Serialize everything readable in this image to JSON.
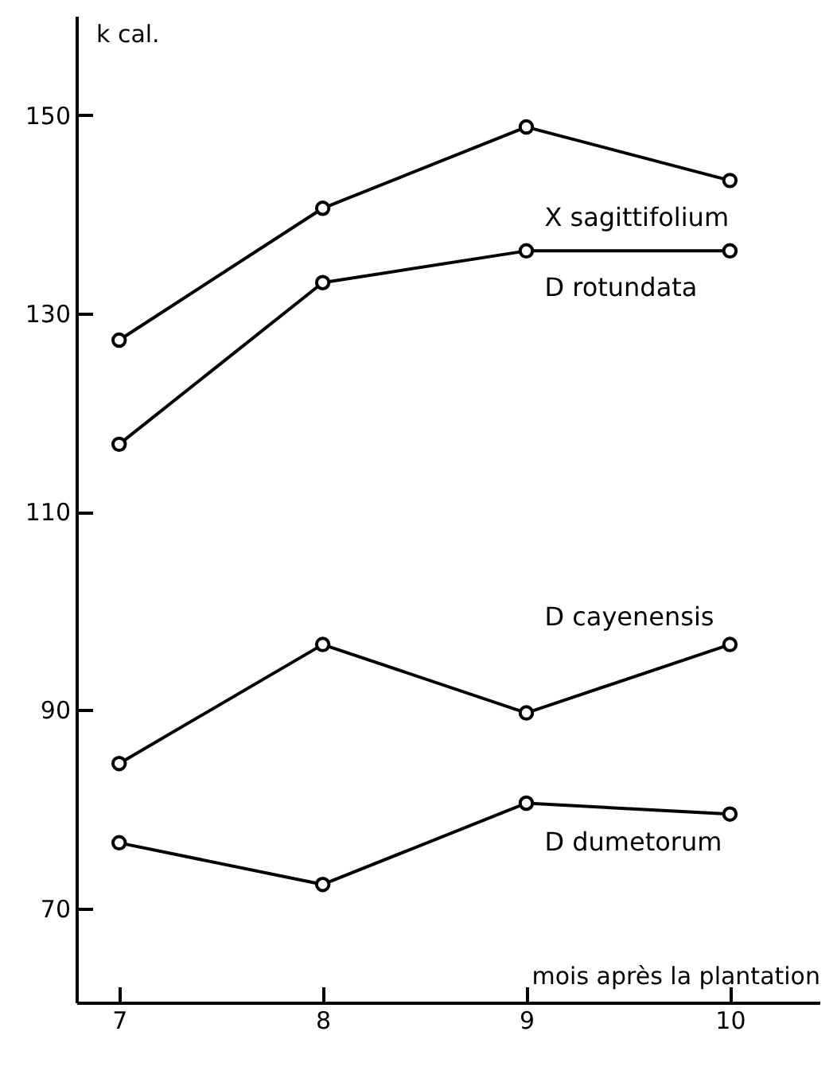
{
  "chart_data": {
    "type": "line",
    "xlabel": "mois après la plantation",
    "ylabel": "k cal.",
    "x": [
      7,
      8,
      9,
      10
    ],
    "series": [
      {
        "name": "X sagittifolium",
        "color": "#000000",
        "values": [
          127.3,
          140.6,
          148.8,
          143.4
        ]
      },
      {
        "name": "D rotundata",
        "color": "#000000",
        "values": [
          116.8,
          133.1,
          136.3,
          136.3
        ]
      },
      {
        "name": "D cayenensis",
        "color": "#000000",
        "values": [
          84.6,
          96.6,
          89.7,
          96.6
        ]
      },
      {
        "name": "D dumetorum",
        "color": "#000000",
        "values": [
          76.6,
          72.4,
          80.6,
          79.5
        ]
      }
    ],
    "xlim": [
      6.79,
      10.44
    ],
    "ylim": [
      60.5,
      160
    ],
    "xticks": [
      7,
      8,
      9,
      10
    ],
    "yticks": [
      70,
      90,
      110,
      130,
      150
    ],
    "grid": false,
    "marker": "circle",
    "line_style": "solid"
  }
}
